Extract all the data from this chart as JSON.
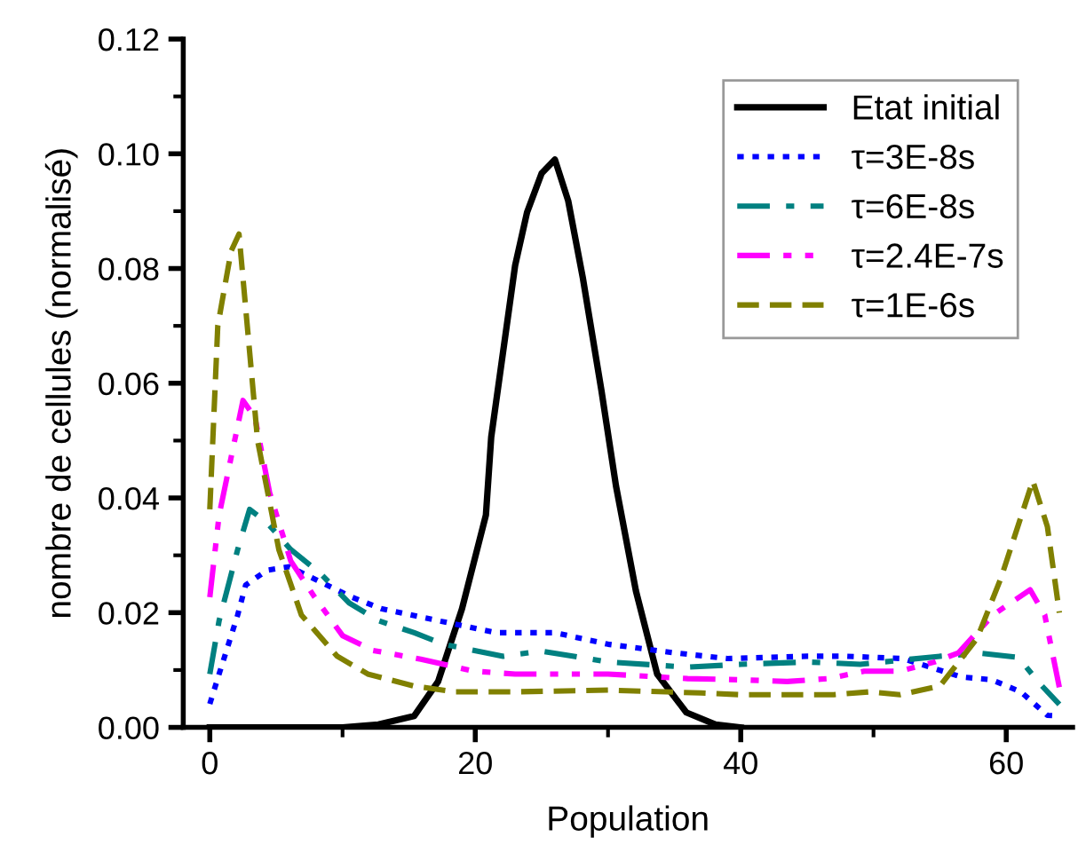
{
  "chart_data": {
    "type": "line",
    "xlabel": "Population",
    "ylabel": "nombre de cellules (normalisé)",
    "xlim": [
      -2,
      65
    ],
    "xticks": [
      0,
      20,
      40,
      60
    ],
    "ylim": [
      0,
      0.12
    ],
    "yticks": [
      {
        "value": 0,
        "label": "0.00"
      },
      {
        "value": 0.02,
        "label": "0.02"
      },
      {
        "value": 0.04,
        "label": "0.04"
      },
      {
        "value": 0.06,
        "label": "0.06"
      },
      {
        "value": 0.08,
        "label": "0.08"
      },
      {
        "value": 0.1,
        "label": "0.10"
      },
      {
        "value": 0.12,
        "label": "0.12"
      }
    ],
    "grid": false,
    "legend": "top right",
    "marker": "none",
    "series": [
      {
        "name": "Etat initial",
        "color": "#000000",
        "line_style": "solid",
        "x": [
          0,
          10,
          12.7,
          15.4,
          17.2,
          19.0,
          20.8,
          21.2,
          23.0,
          23.9,
          25.0,
          26.0,
          27.0,
          28.1,
          29.5,
          30.6,
          32.1,
          33.7,
          35.9,
          38.1,
          40
        ],
        "values": [
          0,
          0,
          0.0005,
          0.002,
          0.008,
          0.0207,
          0.037,
          0.0506,
          0.0805,
          0.0898,
          0.0966,
          0.099,
          0.0918,
          0.0784,
          0.0588,
          0.0421,
          0.0238,
          0.0093,
          0.0026,
          0.0005,
          0
        ]
      },
      {
        "name": "τ=3E-8s",
        "color": "#0000ff",
        "line_style": "dotted",
        "x": [
          0,
          0.7,
          2.1,
          2.7,
          4.3,
          6,
          10.7,
          12.9,
          17.2,
          21.6,
          26,
          30,
          35,
          39,
          45,
          48,
          52.2,
          56.6,
          58.9,
          61.1,
          63.1,
          64
        ],
        "values": [
          0.0041,
          0.0093,
          0.0196,
          0.0248,
          0.0274,
          0.028,
          0.0227,
          0.0207,
          0.0186,
          0.0165,
          0.0165,
          0.0145,
          0.013,
          0.012,
          0.0124,
          0.0124,
          0.012,
          0.0088,
          0.0083,
          0.0062,
          0.0021,
          0.002
        ]
      },
      {
        "name": "τ=6E-8s",
        "color": "#008080",
        "line_style": "dashdot",
        "x": [
          0,
          0.7,
          2.1,
          3.0,
          4.3,
          6.1,
          8.3,
          10.5,
          12.7,
          15.4,
          17.6,
          22.1,
          25,
          30,
          36,
          40,
          45,
          49,
          55,
          58.2,
          60.9,
          62.7,
          64
        ],
        "values": [
          0.0093,
          0.0186,
          0.031,
          0.038,
          0.0357,
          0.031,
          0.0269,
          0.0217,
          0.0186,
          0.0165,
          0.0145,
          0.0124,
          0.0133,
          0.0114,
          0.0105,
          0.011,
          0.0114,
          0.011,
          0.0124,
          0.0129,
          0.0122,
          0.0072,
          0.004
        ]
      },
      {
        "name": "τ=2.4E-7s",
        "color": "#ff00ff",
        "line_style": "dashdotdot",
        "x": [
          0,
          0.7,
          2.5,
          3.4,
          4.5,
          6.1,
          7.9,
          10,
          12.3,
          15.9,
          19.9,
          23,
          30,
          36,
          40,
          43.5,
          46.6,
          49.3,
          52,
          54.6,
          56.4,
          59,
          61.8,
          62.9,
          64
        ],
        "values": [
          0.0227,
          0.037,
          0.057,
          0.054,
          0.041,
          0.029,
          0.0227,
          0.016,
          0.0134,
          0.0119,
          0.0098,
          0.0093,
          0.0093,
          0.0085,
          0.0083,
          0.008,
          0.0085,
          0.0098,
          0.0098,
          0.0114,
          0.013,
          0.0196,
          0.024,
          0.0196,
          0.007
        ]
      },
      {
        "name": "τ=1E-6s",
        "color": "#808000",
        "line_style": "dashed",
        "x": [
          0,
          0.6,
          1.6,
          2.2,
          3.6,
          5.2,
          6.9,
          9.6,
          11.9,
          15.4,
          18.5,
          23,
          30,
          37,
          40,
          47,
          49.7,
          52,
          55,
          57.8,
          59.6,
          62,
          63.1,
          64
        ],
        "values": [
          0.038,
          0.07,
          0.083,
          0.086,
          0.05,
          0.031,
          0.0196,
          0.0124,
          0.0093,
          0.0072,
          0.0062,
          0.0062,
          0.0065,
          0.006,
          0.0057,
          0.0057,
          0.0062,
          0.0057,
          0.0072,
          0.0155,
          0.026,
          0.043,
          0.035,
          0.02
        ]
      }
    ]
  }
}
